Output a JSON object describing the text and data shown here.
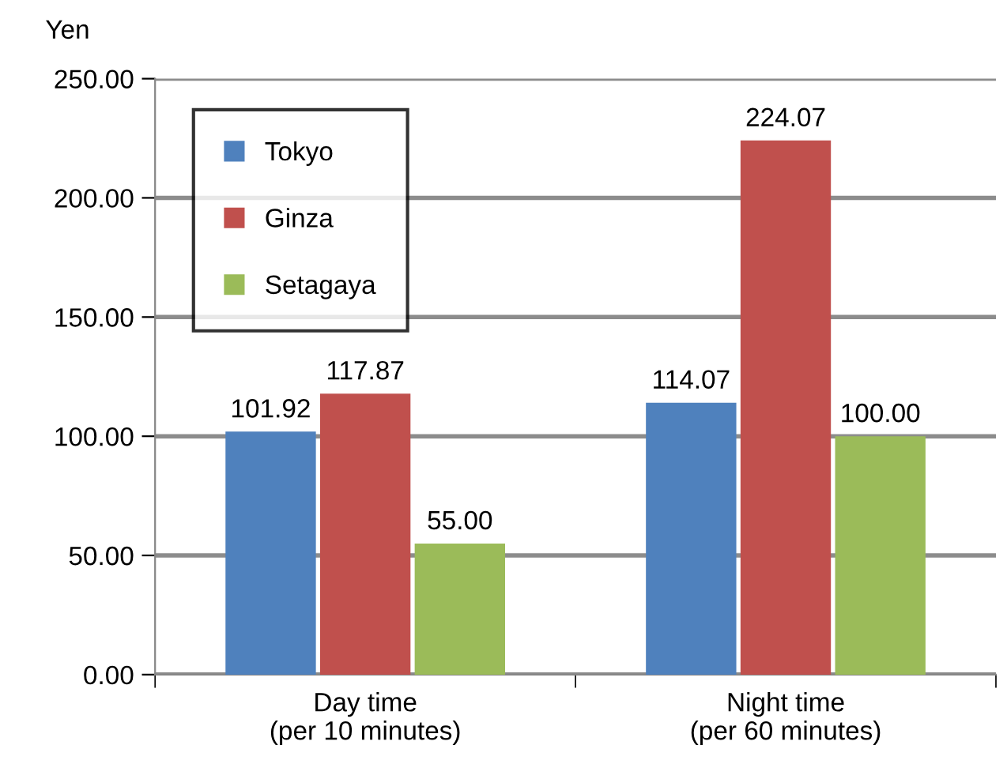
{
  "chart_data": {
    "type": "bar",
    "ylabel": "Yen",
    "categories": [
      "Day time\n(per 10 minutes)",
      "Night time\n(per 60 minutes)"
    ],
    "series": [
      {
        "name": "Tokyo",
        "color": "#4f81bd",
        "values": [
          101.92,
          114.07
        ],
        "value_labels": [
          "101.92",
          "114.07"
        ]
      },
      {
        "name": "Ginza",
        "color": "#c0504d",
        "values": [
          117.87,
          224.07
        ],
        "value_labels": [
          "117.87",
          "224.07"
        ]
      },
      {
        "name": "Setagaya",
        "color": "#9bbb59",
        "values": [
          55.0,
          100.0
        ],
        "value_labels": [
          "55.00",
          "100.00"
        ]
      }
    ],
    "ylim": [
      0,
      250
    ],
    "yticks": [
      {
        "value": 0,
        "label": "0.00"
      },
      {
        "value": 50,
        "label": "50.00"
      },
      {
        "value": 100,
        "label": "100.00"
      },
      {
        "value": 150,
        "label": "150.00"
      },
      {
        "value": 200,
        "label": "200.00"
      },
      {
        "value": 250,
        "label": "250.00"
      }
    ],
    "grid": "y",
    "legend": "top left"
  }
}
